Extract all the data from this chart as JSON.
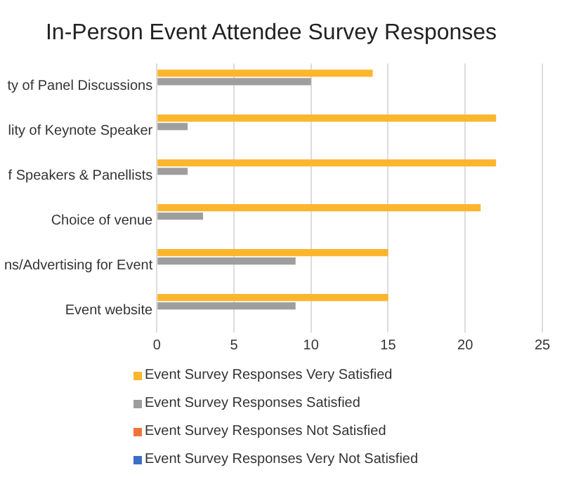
{
  "chart_data": {
    "type": "bar",
    "orientation": "horizontal",
    "title": "In-Person Event Attendee Survey Responses",
    "categories": [
      "ty of Panel Discussions",
      "lity of Keynote Speaker",
      "f Speakers & Panellists",
      "Choice of venue",
      "ns/Advertising for Event",
      "Event website"
    ],
    "series": [
      {
        "name": "Event Survey Responses  Very Satisfied",
        "color": "#fbb62d",
        "values": [
          14,
          22,
          22,
          21,
          15,
          15
        ]
      },
      {
        "name": "Event Survey Responses  Satisfied",
        "color": "#9e9e9e",
        "values": [
          10,
          2,
          2,
          3,
          9,
          9
        ]
      },
      {
        "name": "Event Survey Responses  Not Satisfied",
        "color": "#f2733a",
        "values": [
          0,
          0,
          0,
          0,
          0,
          0
        ]
      },
      {
        "name": "Event Survey Responses  Very Not Satisfied",
        "color": "#3b6fc5",
        "values": [
          0,
          0,
          0,
          0,
          0,
          0
        ]
      }
    ],
    "xlim": [
      0,
      25
    ],
    "xticks": [
      0,
      5,
      10,
      15,
      20,
      25
    ],
    "grid": "x",
    "legend": "bottom"
  }
}
